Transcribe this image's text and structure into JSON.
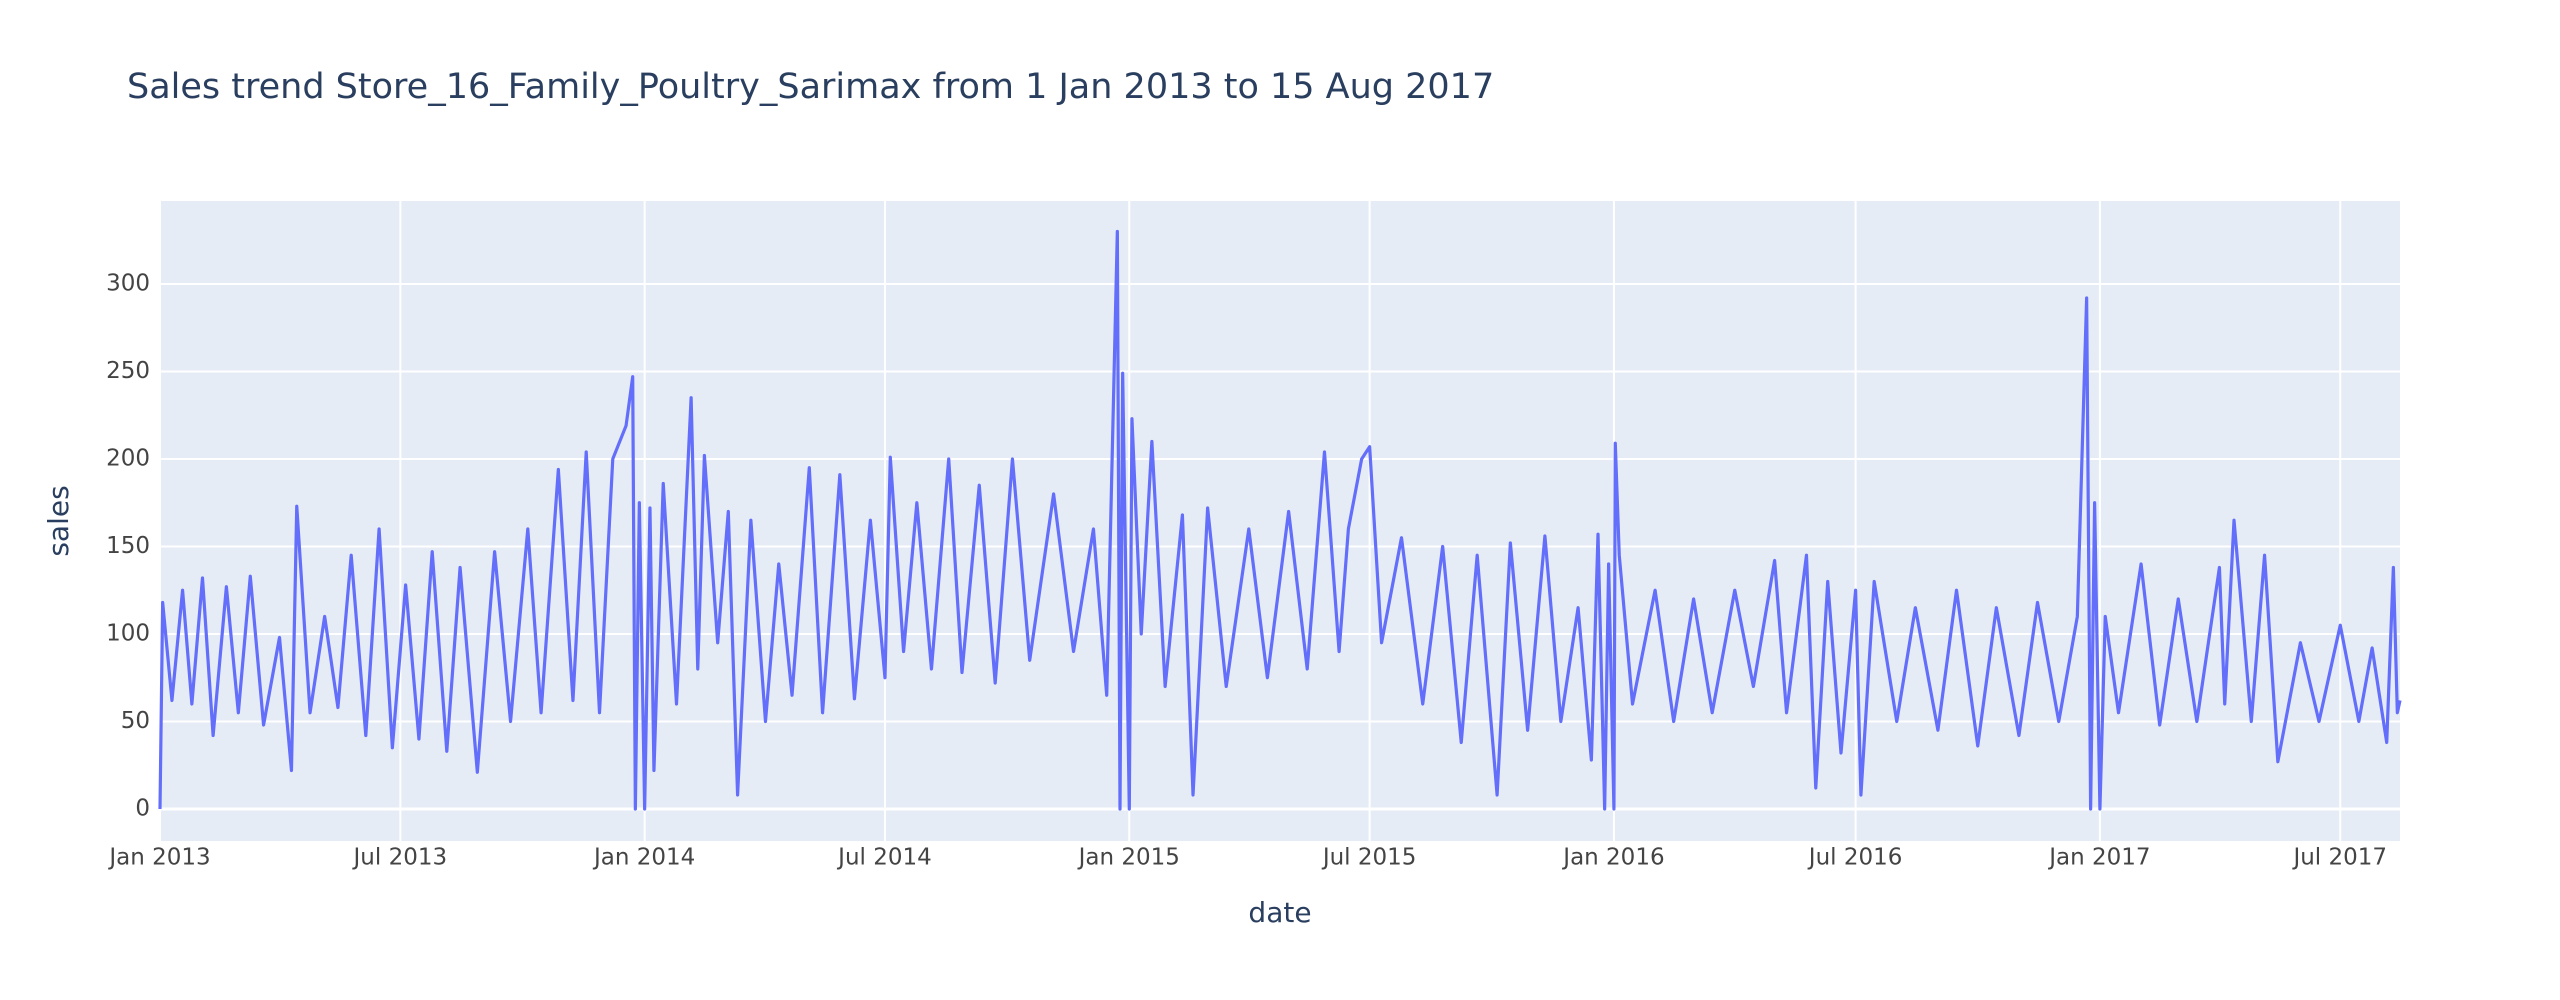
{
  "chart_data": {
    "type": "line",
    "title": "Sales trend Store_16_Family_Poultry_Sarimax from  1 Jan 2013 to 15 Aug 2017",
    "x_label": "date",
    "y_label": "sales",
    "xlim": [
      "2013-01-01",
      "2017-08-15"
    ],
    "xticks": [
      {
        "value": "2013-01-01",
        "label": "Jan 2013"
      },
      {
        "value": "2013-07-01",
        "label": "Jul 2013"
      },
      {
        "value": "2014-01-01",
        "label": "Jan 2014"
      },
      {
        "value": "2014-07-01",
        "label": "Jul 2014"
      },
      {
        "value": "2015-01-01",
        "label": "Jan 2015"
      },
      {
        "value": "2015-07-01",
        "label": "Jul 2015"
      },
      {
        "value": "2016-01-01",
        "label": "Jan 2016"
      },
      {
        "value": "2016-07-01",
        "label": "Jul 2016"
      },
      {
        "value": "2017-01-01",
        "label": "Jan 2017"
      },
      {
        "value": "2017-07-01",
        "label": "Jul 2017"
      }
    ],
    "ylim": [
      -18.3,
      347.4
    ],
    "yticks": [
      0,
      50,
      100,
      150,
      200,
      250,
      300
    ],
    "grid": true,
    "color": "#636efa",
    "x": [
      "2013-01-01",
      "2013-01-03",
      "2013-01-10",
      "2013-01-18",
      "2013-01-25",
      "2013-02-02",
      "2013-02-10",
      "2013-02-20",
      "2013-03-01",
      "2013-03-10",
      "2013-03-20",
      "2013-04-01",
      "2013-04-10",
      "2013-04-14",
      "2013-04-24",
      "2013-05-05",
      "2013-05-15",
      "2013-05-25",
      "2013-06-05",
      "2013-06-15",
      "2013-06-25",
      "2013-07-05",
      "2013-07-15",
      "2013-07-25",
      "2013-08-05",
      "2013-08-15",
      "2013-08-28",
      "2013-09-10",
      "2013-09-22",
      "2013-10-05",
      "2013-10-15",
      "2013-10-28",
      "2013-11-08",
      "2013-11-18",
      "2013-11-28",
      "2013-12-08",
      "2013-12-18",
      "2013-12-23",
      "2013-12-25",
      "2013-12-28",
      "2014-01-01",
      "2014-01-05",
      "2014-01-08",
      "2014-01-15",
      "2014-01-25",
      "2014-02-05",
      "2014-02-10",
      "2014-02-15",
      "2014-02-25",
      "2014-03-05",
      "2014-03-12",
      "2014-03-22",
      "2014-04-02",
      "2014-04-12",
      "2014-04-22",
      "2014-05-05",
      "2014-05-15",
      "2014-05-28",
      "2014-06-08",
      "2014-06-20",
      "2014-07-01",
      "2014-07-05",
      "2014-07-15",
      "2014-07-25",
      "2014-08-05",
      "2014-08-18",
      "2014-08-28",
      "2014-09-10",
      "2014-09-22",
      "2014-10-05",
      "2014-10-18",
      "2014-11-05",
      "2014-11-20",
      "2014-12-05",
      "2014-12-15",
      "2014-12-23",
      "2014-12-25",
      "2014-12-27",
      "2015-01-01",
      "2015-01-03",
      "2015-01-10",
      "2015-01-18",
      "2015-01-28",
      "2015-02-10",
      "2015-02-18",
      "2015-03-01",
      "2015-03-15",
      "2015-04-01",
      "2015-04-15",
      "2015-05-01",
      "2015-05-15",
      "2015-05-28",
      "2015-06-08",
      "2015-06-15",
      "2015-06-25",
      "2015-07-01",
      "2015-07-10",
      "2015-07-25",
      "2015-08-10",
      "2015-08-25",
      "2015-09-08",
      "2015-09-20",
      "2015-10-05",
      "2015-10-15",
      "2015-10-28",
      "2015-11-10",
      "2015-11-22",
      "2015-12-05",
      "2015-12-15",
      "2015-12-20",
      "2015-12-25",
      "2015-12-28",
      "2016-01-01",
      "2016-01-02",
      "2016-01-05",
      "2016-01-15",
      "2016-02-01",
      "2016-02-15",
      "2016-03-01",
      "2016-03-15",
      "2016-04-01",
      "2016-04-15",
      "2016-05-01",
      "2016-05-10",
      "2016-05-25",
      "2016-06-01",
      "2016-06-10",
      "2016-06-20",
      "2016-07-01",
      "2016-07-05",
      "2016-07-15",
      "2016-08-01",
      "2016-08-15",
      "2016-09-01",
      "2016-09-15",
      "2016-10-01",
      "2016-10-15",
      "2016-11-01",
      "2016-11-15",
      "2016-12-01",
      "2016-12-15",
      "2016-12-22",
      "2016-12-25",
      "2016-12-28",
      "2017-01-01",
      "2017-01-05",
      "2017-01-15",
      "2017-02-01",
      "2017-02-15",
      "2017-03-01",
      "2017-03-15",
      "2017-04-01",
      "2017-04-05",
      "2017-04-12",
      "2017-04-25",
      "2017-05-05",
      "2017-05-15",
      "2017-06-01",
      "2017-06-15",
      "2017-07-01",
      "2017-07-15",
      "2017-07-25",
      "2017-08-05",
      "2017-08-10",
      "2017-08-13",
      "2017-08-15"
    ],
    "values": [
      0,
      118,
      62,
      125,
      60,
      132,
      42,
      127,
      55,
      133,
      48,
      98,
      22,
      173,
      55,
      110,
      58,
      145,
      42,
      160,
      35,
      128,
      40,
      147,
      33,
      138,
      21,
      147,
      50,
      160,
      55,
      194,
      62,
      204,
      55,
      200,
      219,
      247,
      0,
      175,
      0,
      172,
      22,
      186,
      60,
      235,
      80,
      202,
      95,
      170,
      8,
      165,
      50,
      140,
      65,
      195,
      55,
      191,
      63,
      165,
      75,
      201,
      90,
      175,
      80,
      200,
      78,
      185,
      72,
      200,
      85,
      180,
      90,
      160,
      65,
      330,
      0,
      249,
      0,
      223,
      100,
      210,
      70,
      168,
      8,
      172,
      70,
      160,
      75,
      170,
      80,
      204,
      90,
      160,
      200,
      207,
      95,
      155,
      60,
      150,
      38,
      145,
      8,
      152,
      45,
      156,
      50,
      115,
      28,
      157,
      0,
      140,
      0,
      209,
      145,
      60,
      125,
      50,
      120,
      55,
      125,
      70,
      142,
      55,
      145,
      12,
      130,
      32,
      125,
      8,
      130,
      50,
      115,
      45,
      125,
      36,
      115,
      42,
      118,
      50,
      110,
      292,
      0,
      175,
      0,
      110,
      55,
      140,
      48,
      120,
      50,
      138,
      60,
      165,
      50,
      145,
      27,
      95,
      50,
      105,
      50,
      92,
      38,
      138,
      55,
      62
    ]
  }
}
